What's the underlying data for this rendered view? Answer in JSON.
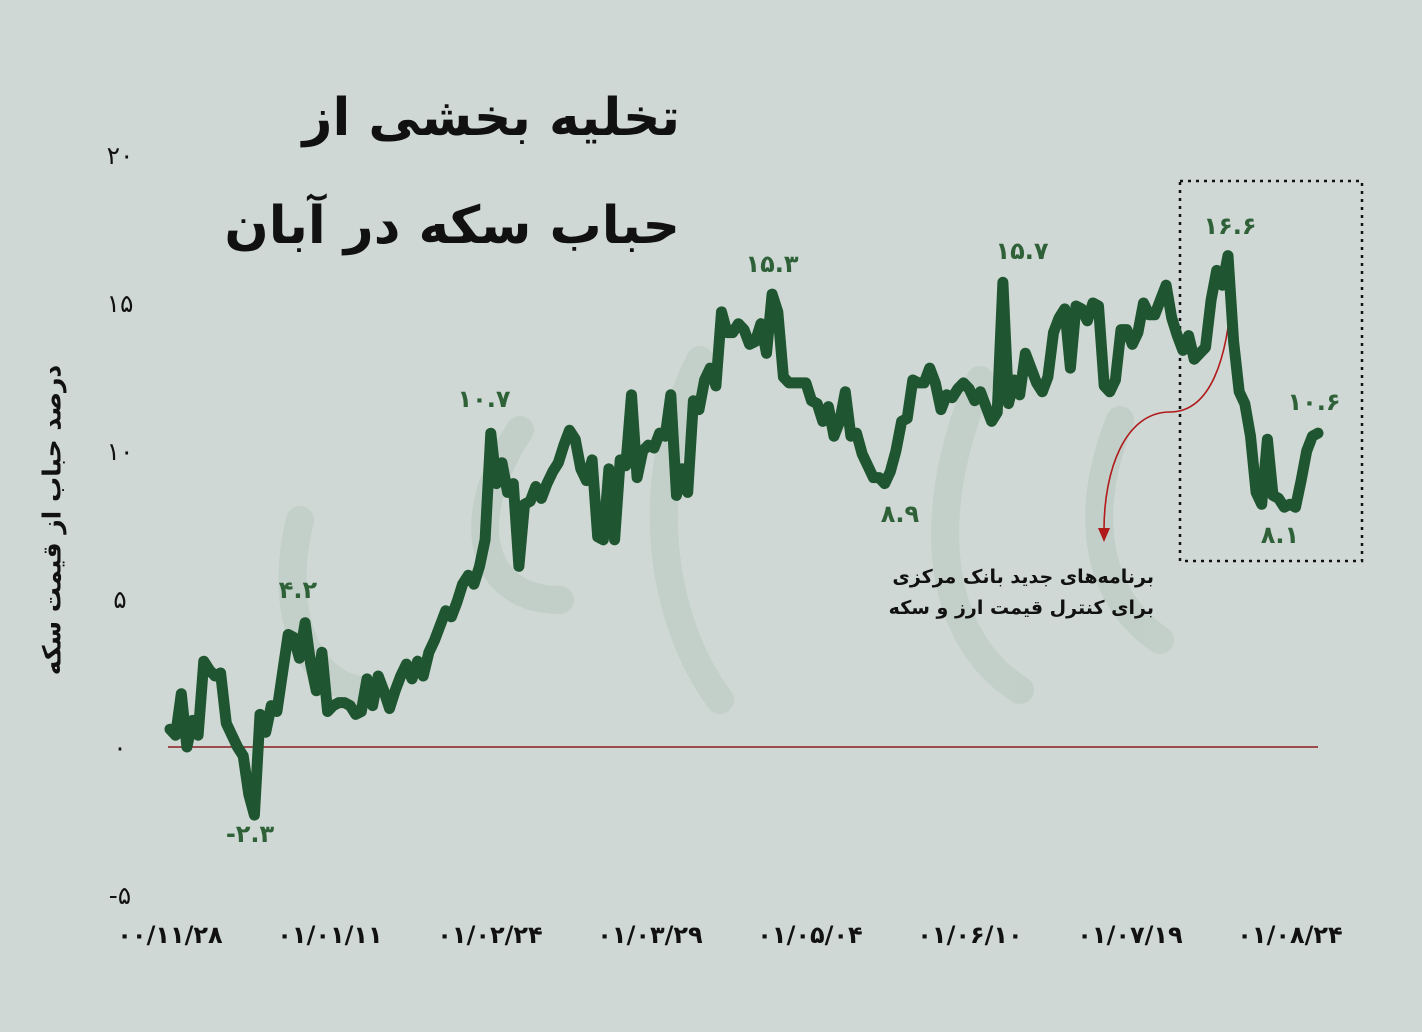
{
  "chart_data": {
    "type": "line",
    "title_line1": "تخلیه بخشی از",
    "title_line2": "حباب سکه در آبان",
    "ylabel": "درصد حباب از قیمت سکه",
    "ylim": [
      -5,
      20
    ],
    "y_ticks": [
      "-۵",
      "۰",
      "۵",
      "۱۰",
      "۱۵",
      "۲۰"
    ],
    "y_tick_values": [
      -5,
      0,
      5,
      10,
      15,
      20
    ],
    "x_ticks": [
      "۰۰/۱۱/۲۸",
      "۰۱/۰۱/۱۱",
      "۰۱/۰۲/۲۴",
      "۰۱/۰۳/۲۹",
      "۰۱/۰۵/۰۴",
      "۰۱/۰۶/۱۰",
      "۰۱/۰۷/۱۹",
      "۰۱/۰۸/۲۴"
    ],
    "grid": false,
    "line_color": "#1f5530",
    "zero_line_color": "#8b1d1d",
    "values": [
      0.6,
      0.4,
      1.8,
      0,
      0.9,
      0.4,
      2.9,
      2.6,
      2.4,
      2.5,
      0.8,
      0.4,
      0,
      -0.3,
      -1.6,
      -2.3,
      1.1,
      0.5,
      1.4,
      1.2,
      2.5,
      3.8,
      3.7,
      3.0,
      4.2,
      2.8,
      1.9,
      3.2,
      1.2,
      1.4,
      1.5,
      1.5,
      1.4,
      1.1,
      1.2,
      2.3,
      1.4,
      2.4,
      1.9,
      1.3,
      1.9,
      2.4,
      2.8,
      2.3,
      2.9,
      2.4,
      3.2,
      3.6,
      4.1,
      4.6,
      4.4,
      4.9,
      5.5,
      5.8,
      5.5,
      6.1,
      7.0,
      10.6,
      8.9,
      9.6,
      8.6,
      8.9,
      6.1,
      8.2,
      8.3,
      8.8,
      8.4,
      8.9,
      9.3,
      9.6,
      10.2,
      10.7,
      10.4,
      9.4,
      9.0,
      9.7,
      7.1,
      7.0,
      9.4,
      7.0,
      9.7,
      9.5,
      11.9,
      9.1,
      10.0,
      10.2,
      10.1,
      10.6,
      10.5,
      11.9,
      8.5,
      9.4,
      8.6,
      11.7,
      11.4,
      12.4,
      12.8,
      12.2,
      14.7,
      14.0,
      14.0,
      14.3,
      14.1,
      13.6,
      13.7,
      14.3,
      13.3,
      15.3,
      14.7,
      12.5,
      12.3,
      12.3,
      12.3,
      12.3,
      11.7,
      11.6,
      11.0,
      11.5,
      10.5,
      11.0,
      12.0,
      10.5,
      10.6,
      9.9,
      9.5,
      9.1,
      9.1,
      8.9,
      9.3,
      10.0,
      11.0,
      11.1,
      12.4,
      12.3,
      12.3,
      12.8,
      12.3,
      11.4,
      11.9,
      11.8,
      12.1,
      12.3,
      12.1,
      11.7,
      12.0,
      11.5,
      11.0,
      11.3,
      15.7,
      11.6,
      12.4,
      11.9,
      13.3,
      12.8,
      12.3,
      12.0,
      12.5,
      14.0,
      14.5,
      14.8,
      12.8,
      14.9,
      14.8,
      14.4,
      15.0,
      14.9,
      12.2,
      12.0,
      12.4,
      14.1,
      14.1,
      13.6,
      14.0,
      15.0,
      14.6,
      14.6,
      15.1,
      15.6,
      14.5,
      13.9,
      13.4,
      13.9,
      13.1,
      13.3,
      13.5,
      15.1,
      16.1,
      15.6,
      16.6,
      13.7,
      12.0,
      11.6,
      10.5,
      8.6,
      8.2,
      10.4,
      8.5,
      8.4,
      8.1,
      8.2,
      8.1,
      9.0,
      10.0,
      10.5,
      10.6
    ],
    "annotations": {
      "l_min": "-۲.۳",
      "l_42": "۴.۲",
      "l_107": "۱۰.۷",
      "l_153": "۱۵.۳",
      "l_89": "۸.۹",
      "l_157": "۱۵.۷",
      "l_166": "۱۶.۶",
      "l_81": "۸.۱",
      "l_106": "۱۰.۶"
    },
    "note_line1": "برنامه‌های جدید بانک مرکزی",
    "note_line2": "برای کنترل قیمت ارز و سکه",
    "note_arrow_color": "#b01a1a"
  }
}
